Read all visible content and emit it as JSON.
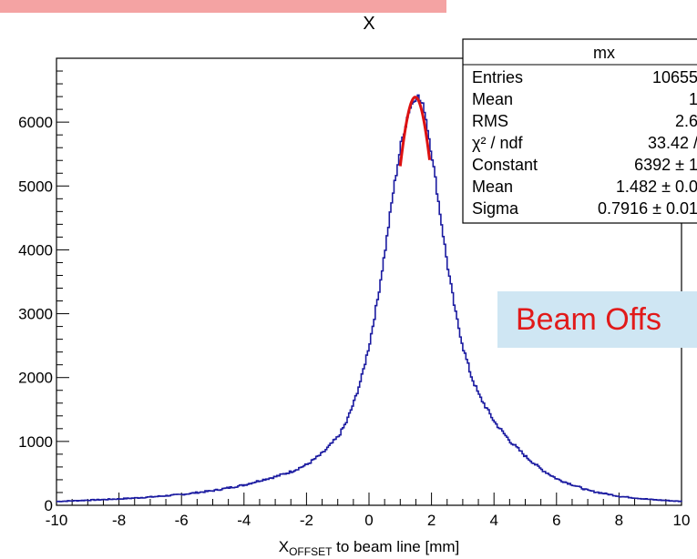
{
  "chart_data": {
    "type": "line",
    "title": "X",
    "xlabel": {
      "main": "X",
      "subscript": "OFFSET",
      "rest": " to beam line [mm]"
    },
    "ylabel": "",
    "xlim": [
      -10,
      10
    ],
    "ylim": [
      0,
      7000
    ],
    "x_ticks": [
      -10,
      -8,
      -6,
      -4,
      -2,
      0,
      2,
      4,
      6,
      8,
      10
    ],
    "y_ticks": [
      0,
      1000,
      2000,
      3000,
      4000,
      5000,
      6000
    ],
    "histogram": {
      "color": "#1a1aa0",
      "points": [
        [
          -10,
          60
        ],
        [
          -9,
          80
        ],
        [
          -8,
          100
        ],
        [
          -7,
          130
        ],
        [
          -6,
          170
        ],
        [
          -5,
          230
        ],
        [
          -4,
          320
        ],
        [
          -3.5,
          390
        ],
        [
          -3,
          450
        ],
        [
          -2.5,
          530
        ],
        [
          -2,
          640
        ],
        [
          -1.5,
          820
        ],
        [
          -1,
          1080
        ],
        [
          -0.75,
          1300
        ],
        [
          -0.5,
          1620
        ],
        [
          -0.25,
          2020
        ],
        [
          0,
          2550
        ],
        [
          0.25,
          3220
        ],
        [
          0.5,
          4020
        ],
        [
          0.75,
          4900
        ],
        [
          1,
          5650
        ],
        [
          1.25,
          6180
        ],
        [
          1.5,
          6440
        ],
        [
          1.75,
          6200
        ],
        [
          2,
          5450
        ],
        [
          2.25,
          4580
        ],
        [
          2.5,
          3720
        ],
        [
          2.75,
          3000
        ],
        [
          3,
          2450
        ],
        [
          3.25,
          2020
        ],
        [
          3.5,
          1720
        ],
        [
          4,
          1300
        ],
        [
          4.5,
          1000
        ],
        [
          5,
          760
        ],
        [
          5.5,
          560
        ],
        [
          6,
          410
        ],
        [
          7,
          230
        ],
        [
          8,
          140
        ],
        [
          9,
          90
        ],
        [
          10,
          60
        ]
      ]
    },
    "fit": {
      "color": "#dd1111",
      "constant": 6392,
      "mean": 1.482,
      "sigma": 0.7916,
      "range": [
        1.0,
        1.95
      ]
    },
    "stats_box": {
      "name": "mx",
      "rows": [
        {
          "label": "Entries",
          "value": "10655"
        },
        {
          "label": "Mean",
          "value": "1"
        },
        {
          "label": "RMS",
          "value": "2.6"
        },
        {
          "label": "χ² / ndf",
          "value": "33.42 /"
        },
        {
          "label": "Constant",
          "value": "6392 ± 1"
        },
        {
          "label": "Mean",
          "value": "1.482 ± 0.0"
        },
        {
          "label": "Sigma",
          "value": "0.7916 ± 0.01"
        }
      ]
    },
    "annotation": "Beam Offs"
  }
}
